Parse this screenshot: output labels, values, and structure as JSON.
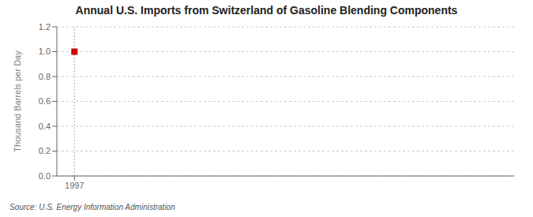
{
  "chart_data": {
    "type": "scatter",
    "title": "Annual U.S. Imports from Switzerland of Gasoline Blending Components",
    "ylabel": "Thousand Barrels per Day",
    "annotation": "Source: U.S. Energy Information Administration",
    "x": [
      1997
    ],
    "values": [
      1.0
    ],
    "color": "#cc0000",
    "marker": "square",
    "xlim": [
      1996.4,
      2012
    ],
    "xticks": [
      1997
    ],
    "ylim": [
      0.0,
      1.2
    ],
    "yticks": [
      {
        "value": 0.0,
        "label": "0.0"
      },
      0.2,
      0.4,
      0.6,
      0.8,
      {
        "value": 1.0,
        "label": "1.0"
      },
      1.2
    ],
    "grid": true,
    "vline": 1997
  }
}
